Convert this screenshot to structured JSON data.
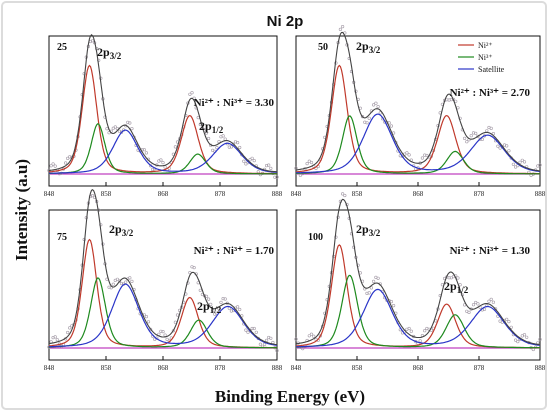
{
  "title": "Ni 2p",
  "xlabel": "Binding Energy (eV)",
  "ylabel": "Intensity (a.u)",
  "colors": {
    "fit_red": "#c0392b",
    "fit_green": "#1e8a1e",
    "satellite_blue": "#2a35c8",
    "envelope": "#444444",
    "baseline": "#c040c0",
    "points": "#a39aa6"
  },
  "chart_data": [
    {
      "type": "line",
      "sample": "25",
      "ratio_text": "Ni²⁺ : Ni³⁺ = 3.30",
      "x_ticks": [
        "848",
        "858",
        "868",
        "878",
        "888"
      ],
      "xlim": [
        848,
        888
      ],
      "peak_labels": [
        "2p3/2",
        "2p1/2"
      ],
      "series": [
        {
          "name": "Ni²⁺",
          "peaks": [
            {
              "center": 855.1,
              "height": 0.82,
              "width": 1.3
            },
            {
              "center": 872.7,
              "height": 0.44,
              "width": 1.5
            }
          ]
        },
        {
          "name": "Ni³⁺",
          "peaks": [
            {
              "center": 856.6,
              "height": 0.38,
              "width": 1.2
            },
            {
              "center": 874.1,
              "height": 0.15,
              "width": 1.4
            }
          ]
        },
        {
          "name": "Satellite",
          "peaks": [
            {
              "center": 861.4,
              "height": 0.33,
              "width": 2.2
            },
            {
              "center": 879.3,
              "height": 0.23,
              "width": 2.6
            }
          ]
        }
      ]
    },
    {
      "type": "line",
      "sample": "50",
      "ratio_text": "Ni²⁺ : Ni³⁺ = 2.70",
      "x_ticks": [
        "848",
        "858",
        "868",
        "878",
        "888"
      ],
      "xlim": [
        848,
        888
      ],
      "peak_labels": [
        "2p3/2"
      ],
      "legend": [
        "Ni²⁺",
        "Ni³⁺",
        "Satellite"
      ],
      "series": [
        {
          "name": "Ni²⁺",
          "peaks": [
            {
              "center": 855.1,
              "height": 0.82,
              "width": 1.3
            },
            {
              "center": 872.7,
              "height": 0.44,
              "width": 1.5
            }
          ]
        },
        {
          "name": "Ni³⁺",
          "peaks": [
            {
              "center": 856.8,
              "height": 0.44,
              "width": 1.2
            },
            {
              "center": 874.1,
              "height": 0.17,
              "width": 1.4
            }
          ]
        },
        {
          "name": "Satellite",
          "peaks": [
            {
              "center": 861.4,
              "height": 0.45,
              "width": 2.4
            },
            {
              "center": 879.4,
              "height": 0.29,
              "width": 2.8
            }
          ]
        }
      ]
    },
    {
      "type": "line",
      "sample": "75",
      "ratio_text": "Ni²⁺ : Ni³⁺ = 1.70",
      "x_ticks": [
        "848",
        "858",
        "868",
        "878",
        "888"
      ],
      "xlim": [
        848,
        888
      ],
      "peak_labels": [
        "2p3/2",
        "2p1/2"
      ],
      "series": [
        {
          "name": "Ni²⁺",
          "peaks": [
            {
              "center": 855.1,
              "height": 0.82,
              "width": 1.3
            },
            {
              "center": 872.7,
              "height": 0.38,
              "width": 1.5
            }
          ]
        },
        {
          "name": "Ni³⁺",
          "peaks": [
            {
              "center": 856.6,
              "height": 0.53,
              "width": 1.3
            },
            {
              "center": 874.3,
              "height": 0.21,
              "width": 1.5
            }
          ]
        },
        {
          "name": "Satellite",
          "peaks": [
            {
              "center": 861.4,
              "height": 0.48,
              "width": 2.4
            },
            {
              "center": 879.4,
              "height": 0.31,
              "width": 2.8
            }
          ]
        }
      ]
    },
    {
      "type": "line",
      "sample": "100",
      "ratio_text": "Ni²⁺ : Ni³⁺ = 1.30",
      "x_ticks": [
        "848",
        "858",
        "868",
        "878",
        "888"
      ],
      "xlim": [
        848,
        888
      ],
      "peak_labels": [
        "2p3/2",
        "2p1/2"
      ],
      "series": [
        {
          "name": "Ni²⁺",
          "peaks": [
            {
              "center": 855.1,
              "height": 0.78,
              "width": 1.3
            },
            {
              "center": 872.7,
              "height": 0.33,
              "width": 1.5
            }
          ]
        },
        {
          "name": "Ni³⁺",
          "peaks": [
            {
              "center": 856.8,
              "height": 0.55,
              "width": 1.3
            },
            {
              "center": 874.1,
              "height": 0.25,
              "width": 1.5
            }
          ]
        },
        {
          "name": "Satellite",
          "peaks": [
            {
              "center": 861.4,
              "height": 0.44,
              "width": 2.4
            },
            {
              "center": 879.4,
              "height": 0.31,
              "width": 2.8
            }
          ]
        }
      ]
    }
  ]
}
